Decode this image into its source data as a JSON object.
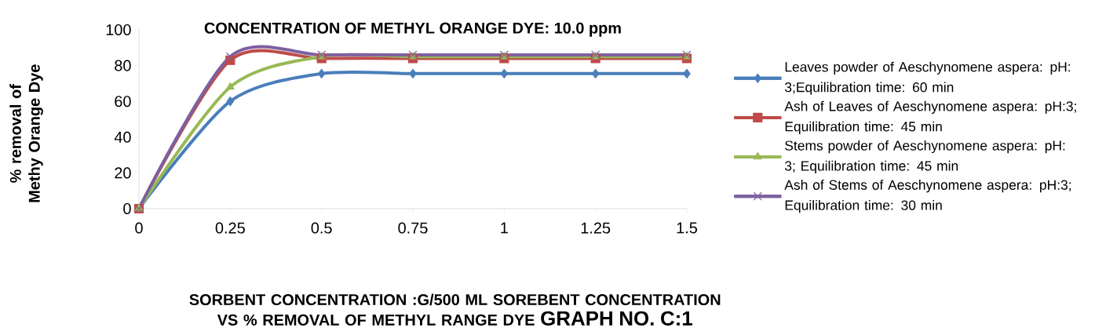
{
  "chart_data": {
    "type": "line",
    "title": "CONCENTRATION OF METHYL ORANGE DYE: 10.0 ppm",
    "xlabel": "SORBENT CONCENTRATION :G/500 ML SOREBENT CONCENTRATION VS % REMOVAL OF METHYL RANGE DYE",
    "ylabel": "% removal of Methy Orange Dye",
    "annotations": [
      "GRAPH NO. C:1"
    ],
    "x": [
      0,
      0.25,
      0.5,
      0.75,
      1,
      1.25,
      1.5
    ],
    "xlim": [
      0,
      1.5
    ],
    "xticks": [
      0,
      0.25,
      0.5,
      0.75,
      1,
      1.25,
      1.5
    ],
    "ylim": [
      0,
      100
    ],
    "yticks": [
      0,
      20,
      40,
      60,
      80,
      100
    ],
    "grid": false,
    "legend": "right",
    "series": [
      {
        "name": "Leaves powder of  Aeschynomene aspera: pH: 3;Equilibration time: 60 min",
        "color": "#4a7ebb",
        "marker": "diamond",
        "values": [
          0,
          60,
          75.5,
          75.5,
          75.5,
          75.5,
          75.5
        ]
      },
      {
        "name": "Ash of Leaves  of  Aeschynomene aspera: pH:3; Equilibration time: 45 min",
        "color": "#be4b48",
        "marker": "square",
        "values": [
          0,
          83,
          84,
          84,
          84,
          84,
          84
        ]
      },
      {
        "name": "Stems powder of Aeschynomene aspera: pH: 3; Equilibration time: 45 min",
        "color": "#98b954",
        "marker": "triangle",
        "values": [
          0,
          68,
          85,
          85,
          85,
          85,
          85
        ]
      },
      {
        "name": "Ash of Stems of Aeschynomene aspera: pH:3; Equilibration time: 30 min",
        "color": "#7d60a0",
        "marker": "cross",
        "values": [
          0,
          85,
          86,
          86,
          86,
          86,
          86
        ]
      }
    ]
  }
}
